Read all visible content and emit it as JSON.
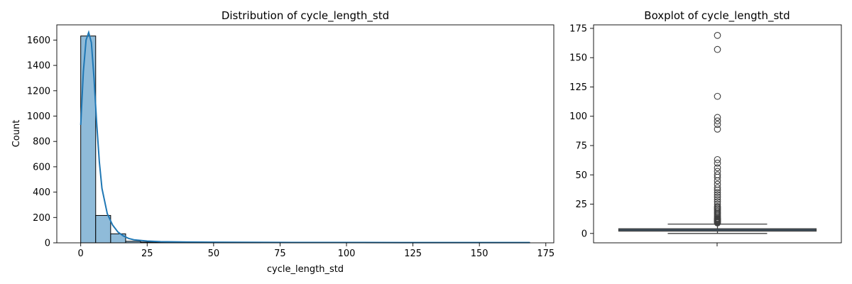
{
  "chart_data": [
    {
      "type": "bar",
      "subtype": "histogram-with-kde",
      "title": "Distribution of cycle_length_std",
      "xlabel": "cycle_length_std",
      "ylabel": "Count",
      "xlim": [
        -9,
        178
      ],
      "ylim": [
        0,
        1720
      ],
      "xticks": [
        0,
        25,
        50,
        75,
        100,
        125,
        150,
        175
      ],
      "yticks": [
        0,
        200,
        400,
        600,
        800,
        1000,
        1200,
        1400,
        1600
      ],
      "bin_width": 5.63,
      "bins": [
        {
          "x0": 0.0,
          "count": 1632
        },
        {
          "x0": 5.63,
          "count": 216
        },
        {
          "x0": 11.27,
          "count": 71
        },
        {
          "x0": 16.9,
          "count": 12
        },
        {
          "x0": 22.53,
          "count": 6
        },
        {
          "x0": 28.17,
          "count": 4
        },
        {
          "x0": 33.8,
          "count": 3
        },
        {
          "x0": 39.43,
          "count": 2
        },
        {
          "x0": 45.07,
          "count": 2
        },
        {
          "x0": 50.7,
          "count": 1
        },
        {
          "x0": 56.33,
          "count": 1
        },
        {
          "x0": 61.97,
          "count": 1
        },
        {
          "x0": 84.5,
          "count": 1
        },
        {
          "x0": 90.13,
          "count": 2
        },
        {
          "x0": 95.77,
          "count": 1
        },
        {
          "x0": 115.47,
          "count": 1
        },
        {
          "x0": 157.73,
          "count": 1
        },
        {
          "x0": 163.37,
          "count": 1
        }
      ],
      "kde": {
        "x": [
          0,
          1,
          2,
          3,
          4,
          5,
          6,
          7,
          8,
          10,
          12,
          14,
          16,
          18,
          20,
          25,
          30,
          40,
          50,
          60,
          80,
          100,
          120,
          150,
          169
        ],
        "y": [
          930,
          1350,
          1600,
          1660,
          1580,
          1300,
          950,
          640,
          430,
          230,
          140,
          85,
          55,
          35,
          24,
          14,
          9,
          6,
          5,
          4,
          3,
          3,
          2,
          2,
          2
        ]
      },
      "colors": {
        "bar_fill": "#8fbbd9",
        "bar_edge": "#000000",
        "kde_line": "#1f77b4"
      },
      "grid": false
    },
    {
      "type": "boxplot",
      "title": "Boxplot of cycle_length_std",
      "ylim": [
        -8,
        178
      ],
      "yticks": [
        0,
        25,
        50,
        75,
        100,
        125,
        150,
        175
      ],
      "stats": {
        "min": 0,
        "q1": 2,
        "median": 3,
        "q3": 4,
        "whisker_high": 8
      },
      "outliers": [
        9,
        9.5,
        10,
        10.5,
        11,
        11.5,
        12,
        12.5,
        13,
        14,
        15,
        16,
        17,
        18,
        19,
        20,
        21,
        22,
        23,
        25,
        27,
        29,
        31,
        33,
        35,
        37,
        39,
        42,
        45,
        48,
        50,
        53,
        56,
        60,
        63,
        89,
        93,
        96,
        99,
        117,
        157,
        169
      ],
      "colors": {
        "box_fill": "#3a6f96",
        "box_edge": "#3f3f3f"
      },
      "grid": false
    }
  ]
}
